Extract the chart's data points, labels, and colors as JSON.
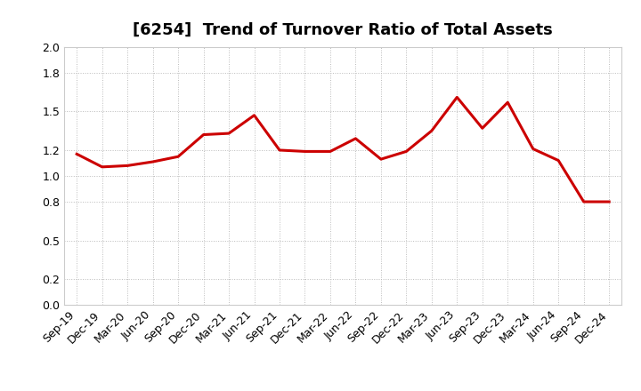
{
  "title": "[6254]  Trend of Turnover Ratio of Total Assets",
  "x_labels": [
    "Sep-19",
    "Dec-19",
    "Mar-20",
    "Jun-20",
    "Sep-20",
    "Dec-20",
    "Mar-21",
    "Jun-21",
    "Sep-21",
    "Dec-21",
    "Mar-22",
    "Jun-22",
    "Sep-22",
    "Dec-22",
    "Mar-23",
    "Jun-23",
    "Sep-23",
    "Dec-23",
    "Mar-24",
    "Jun-24",
    "Sep-24",
    "Dec-24"
  ],
  "values": [
    1.17,
    1.07,
    1.08,
    1.11,
    1.15,
    1.32,
    1.33,
    1.47,
    1.2,
    1.19,
    1.19,
    1.29,
    1.13,
    1.19,
    1.35,
    1.61,
    1.37,
    1.57,
    1.21,
    1.12,
    0.8,
    0.8
  ],
  "line_color": "#cc0000",
  "line_width": 2.2,
  "ylim": [
    0.0,
    2.0
  ],
  "ytick_values": [
    0.0,
    0.2,
    0.5,
    0.8,
    1.0,
    1.2,
    1.5,
    1.8,
    2.0
  ],
  "ytick_labels": [
    "0.0",
    "0.2",
    "0.5",
    "0.8",
    "1.0",
    "1.2",
    "1.5",
    "1.8",
    "2.0"
  ],
  "background_color": "#ffffff",
  "grid_color": "#bbbbbb",
  "title_fontsize": 13,
  "tick_fontsize": 9
}
